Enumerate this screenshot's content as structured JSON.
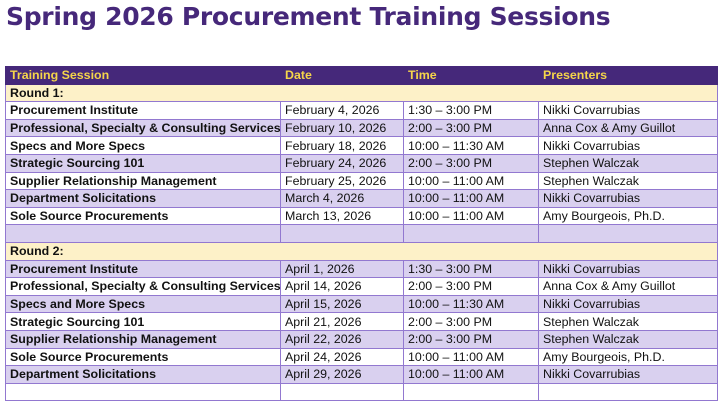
{
  "title": "Spring 2026 Procurement Training Sessions",
  "colors": {
    "header_bg": "#45287a",
    "header_text": "#f5d54a",
    "round_bg": "#fdf1c8",
    "alt_row": "#d9d0ef",
    "title": "#46287a"
  },
  "columns": [
    "Training Session",
    "Date",
    "Time",
    "Presenters"
  ],
  "rounds": [
    {
      "label": "Round 1:",
      "rows": [
        [
          "Procurement Institute",
          "February 4, 2026",
          "1:30 – 3:00 PM",
          "Nikki Covarrubias"
        ],
        [
          "Professional, Specialty & Consulting Services",
          "February 10, 2026",
          "2:00 – 3:00 PM",
          "Anna Cox & Amy Guillot"
        ],
        [
          "Specs and More Specs",
          "February 18, 2026",
          "10:00 – 11:30 AM",
          "Nikki Covarrubias"
        ],
        [
          "Strategic Sourcing 101",
          "February 24, 2026",
          "2:00 – 3:00 PM",
          "Stephen Walczak"
        ],
        [
          "Supplier Relationship Management",
          "February 25, 2026",
          "10:00 – 11:00 AM",
          "Stephen Walczak"
        ],
        [
          "Department Solicitations",
          "March 4, 2026",
          "10:00 – 11:00 AM",
          "Nikki Covarrubias"
        ],
        [
          "Sole Source Procurements",
          "March 13, 2026",
          "10:00 – 11:00 AM",
          "Amy Bourgeois, Ph.D."
        ]
      ]
    },
    {
      "label": "Round 2:",
      "rows": [
        [
          "Procurement Institute",
          "April 1, 2026",
          "1:30 – 3:00 PM",
          "Nikki Covarrubias"
        ],
        [
          "Professional, Specialty & Consulting Services",
          "April 14, 2026",
          "2:00 – 3:00 PM",
          "Anna Cox & Amy Guillot"
        ],
        [
          "Specs and More Specs",
          "April 15, 2026",
          "10:00 – 11:30 AM",
          "Nikki Covarrubias"
        ],
        [
          "Strategic Sourcing 101",
          "April 21, 2026",
          "2:00 – 3:00 PM",
          "Stephen Walczak"
        ],
        [
          "Supplier Relationship Management",
          "April 22, 2026",
          "2:00 – 3:00 PM",
          "Stephen Walczak"
        ],
        [
          "Sole Source Procurements",
          "April 24, 2026",
          "10:00 – 11:00 AM",
          "Amy Bourgeois, Ph.D."
        ],
        [
          "Department Solicitations",
          "April 29, 2026",
          "10:00 – 11:00 AM",
          "Nikki Covarrubias"
        ]
      ]
    }
  ]
}
